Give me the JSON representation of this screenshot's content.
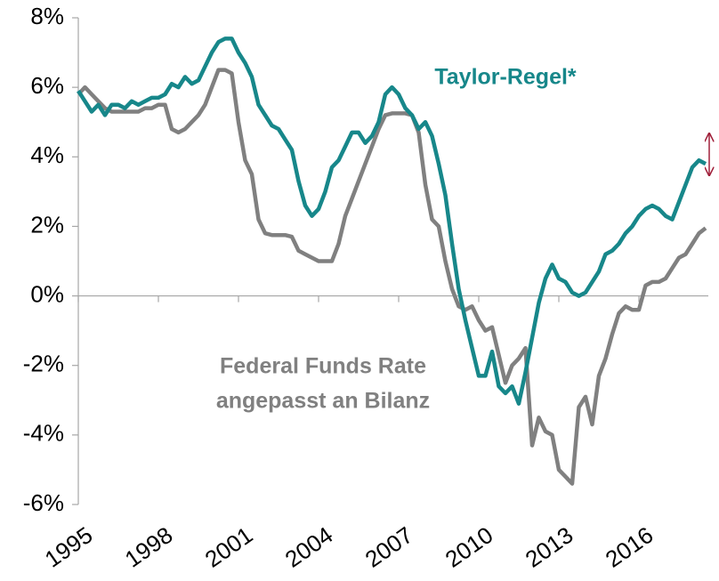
{
  "chart_data": {
    "type": "line",
    "x": [
      1995,
      1995.25,
      1995.5,
      1995.75,
      1996,
      1996.25,
      1996.5,
      1996.75,
      1997,
      1997.25,
      1997.5,
      1997.75,
      1998,
      1998.25,
      1998.5,
      1998.75,
      1999,
      1999.25,
      1999.5,
      1999.75,
      2000,
      2000.25,
      2000.5,
      2000.75,
      2001,
      2001.25,
      2001.5,
      2001.75,
      2002,
      2002.25,
      2002.5,
      2002.75,
      2003,
      2003.25,
      2003.5,
      2003.75,
      2004,
      2004.25,
      2004.5,
      2004.75,
      2005,
      2005.25,
      2005.5,
      2005.75,
      2006,
      2006.25,
      2006.5,
      2006.75,
      2007,
      2007.25,
      2007.5,
      2007.75,
      2008,
      2008.25,
      2008.5,
      2008.75,
      2009,
      2009.25,
      2009.5,
      2009.75,
      2010,
      2010.25,
      2010.5,
      2010.75,
      2011,
      2011.25,
      2011.5,
      2011.75,
      2012,
      2012.25,
      2012.5,
      2012.75,
      2013,
      2013.25,
      2013.5,
      2013.75,
      2014,
      2014.25,
      2014.5,
      2014.75,
      2015,
      2015.25,
      2015.5,
      2015.75,
      2016,
      2016.25,
      2016.5,
      2016.75,
      2017,
      2017.25,
      2017.5,
      2017.75,
      2018,
      2018.25,
      2018.5
    ],
    "series": [
      {
        "name": "Taylor-Regel*",
        "color": "#17878a",
        "values": [
          5.9,
          5.6,
          5.3,
          5.5,
          5.2,
          5.5,
          5.5,
          5.4,
          5.6,
          5.5,
          5.6,
          5.7,
          5.7,
          5.8,
          6.1,
          6.0,
          6.3,
          6.1,
          6.2,
          6.6,
          7.0,
          7.3,
          7.4,
          7.4,
          7.0,
          6.7,
          6.3,
          5.5,
          5.2,
          4.9,
          4.8,
          4.5,
          4.2,
          3.3,
          2.6,
          2.3,
          2.5,
          3.0,
          3.7,
          3.9,
          4.3,
          4.7,
          4.7,
          4.4,
          4.6,
          5.0,
          5.8,
          6.0,
          5.8,
          5.4,
          5.2,
          4.8,
          5.0,
          4.6,
          3.8,
          2.9,
          1.5,
          0.2,
          -0.7,
          -1.5,
          -2.3,
          -2.3,
          -1.6,
          -2.6,
          -2.8,
          -2.6,
          -3.1,
          -2.2,
          -1.2,
          -0.2,
          0.5,
          0.9,
          0.5,
          0.4,
          0.1,
          0.0,
          0.1,
          0.4,
          0.7,
          1.2,
          1.3,
          1.5,
          1.8,
          2.0,
          2.3,
          2.5,
          2.6,
          2.5,
          2.3,
          2.2,
          2.7,
          3.2,
          3.7,
          3.9,
          3.8
        ]
      },
      {
        "name": [
          "Federal Funds Rate",
          "angepasst an Bilanz"
        ],
        "color": "#808080",
        "values": [
          5.8,
          6.0,
          5.8,
          5.6,
          5.4,
          5.3,
          5.3,
          5.3,
          5.3,
          5.3,
          5.4,
          5.4,
          5.5,
          5.5,
          4.8,
          4.7,
          4.8,
          5.0,
          5.2,
          5.5,
          6.0,
          6.5,
          6.5,
          6.4,
          5.0,
          3.9,
          3.5,
          2.2,
          1.8,
          1.75,
          1.75,
          1.75,
          1.7,
          1.3,
          1.2,
          1.1,
          1.0,
          1.0,
          1.0,
          1.5,
          2.3,
          2.8,
          3.3,
          3.8,
          4.3,
          4.8,
          5.2,
          5.25,
          5.25,
          5.25,
          5.2,
          4.7,
          3.2,
          2.2,
          2.0,
          1.0,
          0.2,
          -0.3,
          -0.4,
          -0.3,
          -0.7,
          -1.0,
          -0.9,
          -1.7,
          -2.5,
          -2.0,
          -1.8,
          -1.5,
          -4.3,
          -3.5,
          -3.9,
          -4.0,
          -5.0,
          -5.2,
          -5.4,
          -3.2,
          -2.9,
          -3.7,
          -2.3,
          -1.8,
          -1.1,
          -0.5,
          -0.3,
          -0.4,
          -0.4,
          0.3,
          0.4,
          0.4,
          0.5,
          0.8,
          1.1,
          1.2,
          1.5,
          1.8,
          1.95
        ]
      }
    ],
    "xlim": [
      1995,
      2018.6
    ],
    "xticks": [
      1995,
      1998,
      2001,
      2004,
      2007,
      2010,
      2013,
      2016
    ],
    "ylim": [
      -6,
      8
    ],
    "yticks": [
      {
        "value": 8,
        "label": "8%"
      },
      {
        "value": 6,
        "label": "6%"
      },
      {
        "value": 4,
        "label": "4%"
      },
      {
        "value": 2,
        "label": "2%"
      },
      {
        "value": 0,
        "label": "0%"
      },
      {
        "value": -2,
        "label": "-2%"
      },
      {
        "value": -4,
        "label": "-4%"
      },
      {
        "value": -6,
        "label": "-6%"
      }
    ]
  }
}
